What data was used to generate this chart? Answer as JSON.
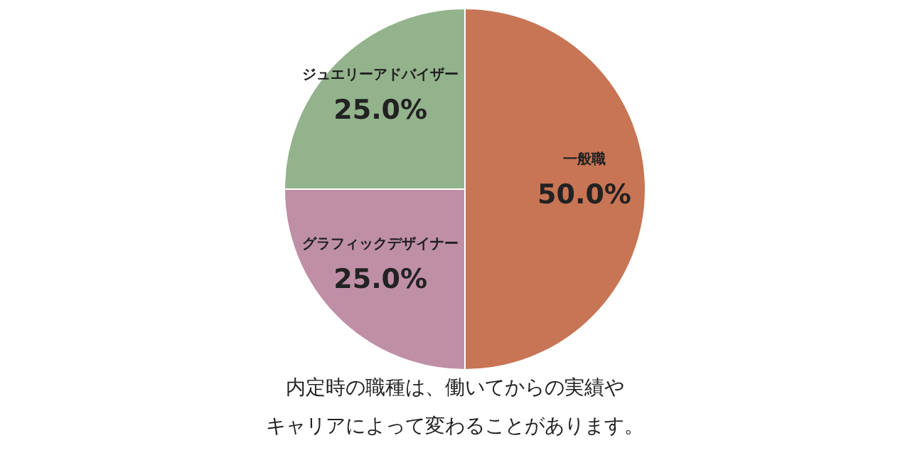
{
  "chart_data": {
    "type": "pie",
    "categories": [
      "一般職",
      "グラフィックデザイナー",
      "ジュエリーアドバイザー"
    ],
    "values": [
      50,
      25,
      25
    ],
    "colors": [
      "#c87555",
      "#bf8fa6",
      "#93b38c"
    ],
    "value_labels": [
      "50.0%",
      "25.0%",
      "25.0%"
    ],
    "annotations": [
      "内定時の職種は、働いてからの実績や",
      "キャリアによって変わることがあります。"
    ],
    "legend": false
  }
}
